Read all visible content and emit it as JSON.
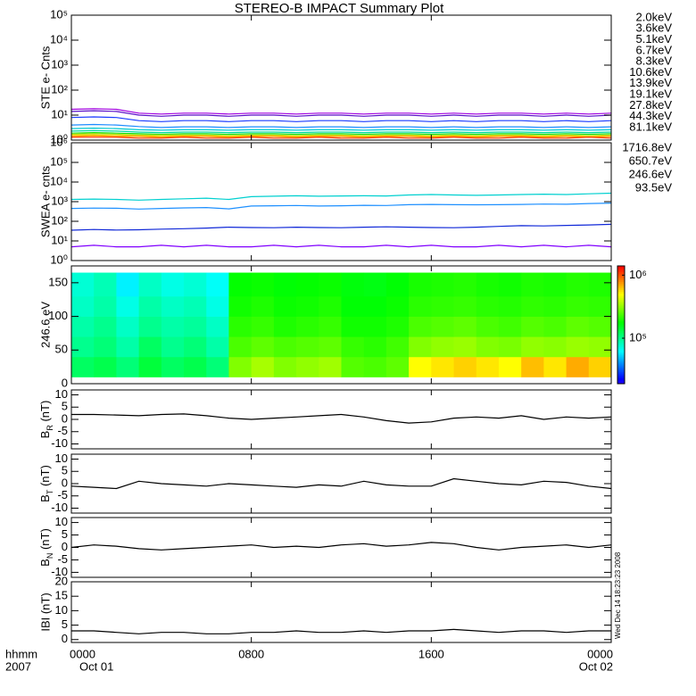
{
  "title": "STEREO-B IMPACT Summary Plot",
  "timestamp": "Wed Dec 14 18:23:23 2008",
  "chart_data": [
    {
      "type": "line",
      "ylabel": "STE e- Cnts",
      "log": true,
      "xlim": [
        0,
        24
      ],
      "xticks": [
        0,
        8,
        16,
        24
      ],
      "ylim": [
        1,
        100000
      ],
      "yticks": [
        {
          "value": 1,
          "label": "10⁰"
        },
        {
          "value": 10,
          "label": "10¹"
        },
        {
          "value": 100,
          "label": "10²"
        },
        {
          "value": 1000,
          "label": "10³"
        },
        {
          "value": 10000,
          "label": "10⁴"
        },
        {
          "value": 100000,
          "label": "10⁵"
        }
      ],
      "x": [
        0,
        1,
        2,
        3,
        4,
        5,
        6,
        7,
        8,
        9,
        10,
        11,
        12,
        13,
        14,
        15,
        16,
        17,
        18,
        19,
        20,
        21,
        22,
        23,
        24
      ],
      "series": [
        {
          "name": "2.0keV",
          "color": "#a000e0",
          "values": [
            17,
            18,
            17,
            12,
            11,
            12,
            12,
            11,
            12,
            12,
            11,
            12,
            12,
            11,
            12,
            12,
            11,
            12,
            11,
            12,
            12,
            11,
            12,
            11,
            12
          ]
        },
        {
          "name": "3.6keV",
          "color": "#5a10c8",
          "values": [
            14,
            15,
            14,
            10,
            9,
            10,
            10,
            9,
            10,
            10,
            9,
            10,
            10,
            9,
            10,
            10,
            9,
            10,
            9,
            10,
            10,
            9,
            10,
            9,
            10
          ]
        },
        {
          "name": "5.1keV",
          "color": "#1a3cff",
          "values": [
            8,
            8.5,
            8,
            6,
            5.5,
            6,
            6,
            5.5,
            6,
            6,
            5.5,
            6,
            6,
            5.5,
            6,
            6,
            5.5,
            6,
            5.5,
            6,
            6,
            5.5,
            6,
            5.5,
            6
          ]
        },
        {
          "name": "6.7keV",
          "color": "#1e8cff",
          "values": [
            4,
            4.2,
            4,
            3.5,
            3.2,
            3.4,
            3.4,
            3.2,
            3.4,
            3.4,
            3.2,
            3.4,
            3.4,
            3.2,
            3.4,
            3.4,
            3.2,
            3.4,
            3.2,
            3.4,
            3.4,
            3.2,
            3.4,
            3.2,
            3.4
          ]
        },
        {
          "name": "8.3keV",
          "color": "#00c8d0",
          "values": [
            2.9,
            3,
            2.9,
            2.6,
            2.5,
            2.6,
            2.6,
            2.5,
            2.6,
            2.6,
            2.5,
            2.6,
            2.6,
            2.5,
            2.6,
            2.6,
            2.5,
            2.6,
            2.5,
            2.6,
            2.6,
            2.5,
            2.6,
            2.5,
            2.6
          ]
        },
        {
          "name": "10.6keV",
          "color": "#00d8a0",
          "values": [
            2.3,
            2.4,
            2.3,
            2.1,
            2,
            2.1,
            2.1,
            2,
            2.1,
            2.1,
            2,
            2.1,
            2.1,
            2,
            2.1,
            2.1,
            2,
            2.1,
            2,
            2.1,
            2.1,
            2,
            2.1,
            2,
            2.1
          ]
        },
        {
          "name": "13.9keV",
          "color": "#10e010",
          "values": [
            1.9,
            2,
            1.9,
            1.8,
            1.7,
            1.8,
            1.8,
            1.7,
            1.8,
            1.8,
            1.7,
            1.8,
            1.8,
            1.7,
            1.8,
            1.8,
            1.7,
            1.8,
            1.7,
            1.8,
            1.8,
            1.7,
            1.8,
            1.7,
            1.8
          ]
        },
        {
          "name": "19.1keV",
          "color": "#b8e000",
          "values": [
            1.7,
            1.8,
            1.7,
            1.6,
            1.6,
            1.6,
            1.6,
            1.5,
            1.6,
            1.6,
            1.5,
            1.6,
            1.6,
            1.5,
            1.6,
            1.6,
            1.5,
            1.6,
            1.5,
            1.6,
            1.6,
            1.5,
            1.6,
            1.5,
            1.6
          ]
        },
        {
          "name": "27.8keV",
          "color": "#f0d000",
          "values": [
            1.6,
            1.6,
            1.5,
            1.5,
            1.4,
            1.5,
            1.5,
            1.4,
            1.5,
            1.5,
            1.4,
            1.5,
            1.5,
            1.4,
            1.5,
            1.5,
            1.4,
            1.5,
            1.4,
            1.5,
            1.5,
            1.4,
            1.5,
            1.4,
            1.5
          ]
        },
        {
          "name": "44.3keV",
          "color": "#ff9800",
          "values": [
            1.4,
            1.5,
            1.4,
            1.4,
            1.3,
            1.4,
            1.4,
            1.3,
            1.4,
            1.4,
            1.3,
            1.4,
            1.4,
            1.3,
            1.4,
            1.4,
            1.3,
            1.4,
            1.3,
            1.4,
            1.4,
            1.3,
            1.4,
            1.3,
            1.4
          ]
        },
        {
          "name": "81.1keV",
          "color": "#ff3000",
          "values": [
            1.3,
            1.3,
            1.3,
            1.2,
            1.2,
            1.3,
            1.2,
            1.2,
            1.3,
            1.2,
            1.2,
            1.3,
            1.2,
            1.2,
            1.3,
            1.2,
            1.2,
            1.3,
            1.2,
            1.2,
            1.3,
            1.2,
            1.2,
            1.3,
            1.2
          ]
        }
      ]
    },
    {
      "type": "line",
      "ylabel": "SWEA e- cnts",
      "log": true,
      "xlim": [
        0,
        24
      ],
      "xticks": [
        0,
        8,
        16,
        24
      ],
      "ylim": [
        1,
        1000000
      ],
      "yticks": [
        {
          "value": 1,
          "label": "10⁰"
        },
        {
          "value": 10,
          "label": "10¹"
        },
        {
          "value": 100,
          "label": "10²"
        },
        {
          "value": 1000,
          "label": "10³"
        },
        {
          "value": 10000,
          "label": "10⁴"
        },
        {
          "value": 100000,
          "label": "10⁵"
        },
        {
          "value": 1000000,
          "label": "10⁶"
        }
      ],
      "x": [
        0,
        1,
        2,
        3,
        4,
        5,
        6,
        7,
        8,
        9,
        10,
        11,
        12,
        13,
        14,
        15,
        16,
        17,
        18,
        19,
        20,
        21,
        22,
        23,
        24
      ],
      "series": [
        {
          "name": "1716.8eV",
          "color": "#8000ff",
          "values": [
            5,
            6,
            5,
            5,
            6,
            5,
            6,
            5,
            5,
            6,
            5,
            6,
            5,
            5,
            6,
            5,
            6,
            5,
            5,
            6,
            5,
            6,
            5,
            6,
            5
          ]
        },
        {
          "name": "650.7eV",
          "color": "#1028d8",
          "values": [
            35,
            38,
            36,
            37,
            40,
            42,
            45,
            50,
            48,
            47,
            50,
            48,
            47,
            50,
            52,
            50,
            48,
            47,
            50,
            55,
            60,
            58,
            62,
            65,
            70
          ]
        },
        {
          "name": "246.6eV",
          "color": "#1e90ff",
          "values": [
            450,
            470,
            460,
            420,
            450,
            480,
            500,
            430,
            600,
            620,
            640,
            600,
            620,
            650,
            640,
            700,
            720,
            700,
            690,
            700,
            720,
            750,
            740,
            800,
            850
          ]
        },
        {
          "name": "93.5eV",
          "color": "#00d0d0",
          "values": [
            1300,
            1350,
            1300,
            1200,
            1300,
            1400,
            1500,
            1300,
            1800,
            1900,
            2000,
            1900,
            1950,
            2000,
            1950,
            2200,
            2300,
            2200,
            2100,
            2200,
            2300,
            2400,
            2300,
            2500,
            2700
          ]
        }
      ]
    },
    {
      "type": "heatmap",
      "ylabel": "246.6 eV",
      "xlim": [
        0,
        24
      ],
      "xticks": [
        0,
        8,
        16,
        24
      ],
      "ylim": [
        0,
        175
      ],
      "yticks": [
        0,
        50,
        100,
        150
      ],
      "x_edges": [
        0,
        1,
        2,
        3,
        4,
        5,
        6,
        7,
        8,
        9,
        10,
        11,
        12,
        13,
        14,
        15,
        16,
        17,
        18,
        19,
        20,
        21,
        22,
        23,
        24
      ],
      "y_edges": [
        10,
        40,
        70,
        100,
        130,
        165
      ],
      "z": [
        [
          120000,
          130000,
          110000,
          140000,
          120000,
          130000,
          110000,
          300000,
          350000,
          300000,
          320000,
          340000,
          250000,
          240000,
          260000,
          500000,
          550000,
          600000,
          550000,
          500000,
          650000,
          550000,
          700000,
          600000
        ],
        [
          100000,
          110000,
          90000,
          120000,
          100000,
          110000,
          90000,
          240000,
          260000,
          240000,
          250000,
          260000,
          220000,
          210000,
          230000,
          300000,
          320000,
          330000,
          300000,
          290000,
          320000,
          310000,
          330000,
          320000
        ],
        [
          90000,
          100000,
          80000,
          100000,
          90000,
          95000,
          80000,
          210000,
          220000,
          200000,
          210000,
          220000,
          190000,
          190000,
          200000,
          240000,
          250000,
          260000,
          240000,
          230000,
          250000,
          240000,
          260000,
          250000
        ],
        [
          80000,
          90000,
          70000,
          90000,
          80000,
          85000,
          70000,
          190000,
          200000,
          185000,
          190000,
          200000,
          175000,
          175000,
          185000,
          210000,
          215000,
          220000,
          210000,
          205000,
          215000,
          210000,
          220000,
          215000
        ],
        [
          75000,
          85000,
          60000,
          80000,
          70000,
          75000,
          65000,
          180000,
          185000,
          175000,
          180000,
          185000,
          170000,
          165000,
          175000,
          195000,
          200000,
          205000,
          195000,
          190000,
          200000,
          195000,
          205000,
          200000
        ]
      ],
      "zlim": [
        19000,
        1400000
      ],
      "zticks": [
        {
          "value": 1000000,
          "label": "10⁶"
        },
        {
          "value": 100000,
          "label": "10⁵"
        }
      ],
      "colormap": "rainbow"
    },
    {
      "type": "line",
      "ylabel": [
        "B",
        "R",
        " (nT)"
      ],
      "log": false,
      "xlim": [
        0,
        24
      ],
      "xticks": [
        0,
        8,
        16,
        24
      ],
      "ylim": [
        -12,
        12
      ],
      "yticks": [
        -10,
        -5,
        0,
        5,
        10
      ],
      "x": [
        0,
        1,
        2,
        3,
        4,
        5,
        6,
        7,
        8,
        9,
        10,
        11,
        12,
        13,
        14,
        15,
        16,
        17,
        18,
        19,
        20,
        21,
        22,
        23,
        24
      ],
      "series": [
        {
          "color": "#000000",
          "values": [
            2,
            2,
            1.8,
            1.5,
            2,
            2.2,
            1.5,
            0.5,
            0,
            0.5,
            1,
            1.5,
            2,
            1,
            -0.5,
            -1.5,
            -1,
            0.5,
            1,
            0.5,
            1.5,
            0,
            1,
            0.5,
            1
          ]
        }
      ]
    },
    {
      "type": "line",
      "ylabel": [
        "B",
        "T",
        " (nT)"
      ],
      "log": false,
      "xlim": [
        0,
        24
      ],
      "xticks": [
        0,
        8,
        16,
        24
      ],
      "ylim": [
        -12,
        12
      ],
      "yticks": [
        -10,
        -5,
        0,
        5,
        10
      ],
      "x": [
        0,
        1,
        2,
        3,
        4,
        5,
        6,
        7,
        8,
        9,
        10,
        11,
        12,
        13,
        14,
        15,
        16,
        17,
        18,
        19,
        20,
        21,
        22,
        23,
        24
      ],
      "series": [
        {
          "color": "#000000",
          "values": [
            -1,
            -1.5,
            -2,
            1,
            0,
            -0.5,
            -1,
            0,
            -0.5,
            -1,
            -1.5,
            -0.5,
            -1,
            1,
            -0.5,
            -1,
            -1,
            2,
            1,
            0,
            -0.5,
            1,
            0.5,
            -1,
            -2
          ]
        }
      ]
    },
    {
      "type": "line",
      "ylabel": [
        "B",
        "N",
        " (nT)"
      ],
      "log": false,
      "xlim": [
        0,
        24
      ],
      "xticks": [
        0,
        8,
        16,
        24
      ],
      "ylim": [
        -12,
        12
      ],
      "yticks": [
        -10,
        -5,
        0,
        5,
        10
      ],
      "x": [
        0,
        1,
        2,
        3,
        4,
        5,
        6,
        7,
        8,
        9,
        10,
        11,
        12,
        13,
        14,
        15,
        16,
        17,
        18,
        19,
        20,
        21,
        22,
        23,
        24
      ],
      "series": [
        {
          "color": "#000000",
          "values": [
            0,
            1,
            0.5,
            -0.5,
            -1,
            -0.5,
            0,
            0.5,
            1,
            0,
            0.5,
            0,
            1,
            1.5,
            0.5,
            1,
            2,
            1.5,
            0,
            -1,
            0,
            0.5,
            1,
            0,
            1
          ]
        }
      ]
    },
    {
      "type": "line",
      "ylabel": "IBI (nT)",
      "log": false,
      "xlim": [
        0,
        24
      ],
      "xticks": [
        {
          "value": 0,
          "label": "0000"
        },
        {
          "value": 8,
          "label": "0800"
        },
        {
          "value": 16,
          "label": "1600"
        },
        {
          "value": 24,
          "label": "0000"
        }
      ],
      "x_sublabels": [
        {
          "value": 0,
          "label": "Oct 01"
        },
        {
          "value": 24,
          "label": "Oct 02"
        }
      ],
      "x_row_labels": [
        "hhmm",
        "2007"
      ],
      "ylim": [
        -1,
        20
      ],
      "yticks": [
        0,
        5,
        10,
        15,
        20
      ],
      "x": [
        0,
        1,
        2,
        3,
        4,
        5,
        6,
        7,
        8,
        9,
        10,
        11,
        12,
        13,
        14,
        15,
        16,
        17,
        18,
        19,
        20,
        21,
        22,
        23,
        24
      ],
      "series": [
        {
          "color": "#000000",
          "values": [
            3,
            3,
            2.5,
            2,
            2.5,
            2.5,
            2,
            2,
            2.5,
            2.5,
            3,
            2.5,
            2.5,
            3,
            2.5,
            3,
            3,
            3.5,
            3,
            2.5,
            3,
            3,
            2.5,
            3,
            3
          ]
        }
      ]
    }
  ]
}
